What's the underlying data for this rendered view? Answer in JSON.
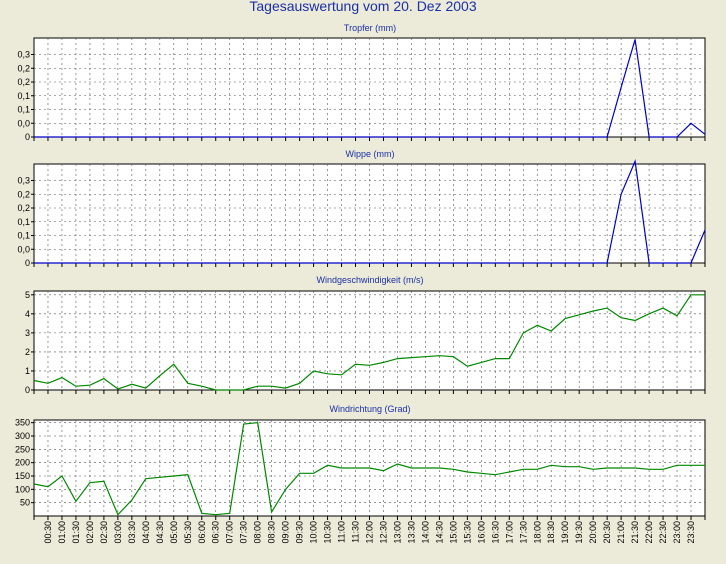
{
  "title": "Tagesauswertung vom 20. Dez 2003",
  "time_labels": [
    "00:30",
    "01:00",
    "01:30",
    "02:00",
    "02:30",
    "03:00",
    "03:30",
    "04:00",
    "04:30",
    "05:00",
    "05:30",
    "06:00",
    "06:30",
    "07:00",
    "07:30",
    "08:00",
    "08:30",
    "09:00",
    "09:30",
    "10:00",
    "10:30",
    "11:00",
    "11:30",
    "12:00",
    "12:30",
    "13:00",
    "13:30",
    "14:00",
    "14:30",
    "15:00",
    "15:30",
    "16:00",
    "16:30",
    "17:00",
    "17:30",
    "18:00",
    "18:30",
    "19:00",
    "19:30",
    "20:00",
    "20:30",
    "21:00",
    "21:30",
    "22:00",
    "22:30",
    "23:00",
    "23:30"
  ],
  "chart_data": [
    {
      "type": "line",
      "title": "Tropfer (mm)",
      "color": "#0000cc",
      "ylim": [
        0,
        0.36
      ],
      "yticks": [
        0,
        0.05,
        0.1,
        0.15,
        0.2,
        0.25,
        0.3
      ],
      "yticklabels": [
        "0",
        "0,0",
        "0,1",
        "0,1",
        "0,2",
        "0,2",
        "0,3"
      ],
      "x": [
        "00:00",
        "00:30",
        "01:00",
        "01:30",
        "02:00",
        "02:30",
        "03:00",
        "03:30",
        "04:00",
        "04:30",
        "05:00",
        "05:30",
        "06:00",
        "06:30",
        "07:00",
        "07:30",
        "08:00",
        "08:30",
        "09:00",
        "09:30",
        "10:00",
        "10:30",
        "11:00",
        "11:30",
        "12:00",
        "12:30",
        "13:00",
        "13:30",
        "14:00",
        "14:30",
        "15:00",
        "15:30",
        "16:00",
        "16:30",
        "17:00",
        "17:30",
        "18:00",
        "18:30",
        "19:00",
        "19:30",
        "20:00",
        "20:30",
        "21:00",
        "21:30",
        "22:00",
        "22:30",
        "23:00",
        "23:30",
        "24:00"
      ],
      "values": [
        0,
        0,
        0,
        0,
        0,
        0,
        0,
        0,
        0,
        0,
        0,
        0,
        0,
        0,
        0,
        0,
        0,
        0,
        0,
        0,
        0,
        0,
        0,
        0,
        0,
        0,
        0,
        0,
        0,
        0,
        0,
        0,
        0,
        0,
        0,
        0,
        0,
        0,
        0,
        0,
        0,
        0,
        0.18,
        0.355,
        0,
        0,
        0,
        0.05,
        0.01
      ]
    },
    {
      "type": "line",
      "title": "Wippe (mm)",
      "color": "#0000cc",
      "ylim": [
        0,
        0.36
      ],
      "yticks": [
        0,
        0.05,
        0.1,
        0.15,
        0.2,
        0.25,
        0.3
      ],
      "yticklabels": [
        "0",
        "0,0",
        "0,1",
        "0,1",
        "0,2",
        "0,2",
        "0,3"
      ],
      "x": [
        "00:00",
        "00:30",
        "01:00",
        "01:30",
        "02:00",
        "02:30",
        "03:00",
        "03:30",
        "04:00",
        "04:30",
        "05:00",
        "05:30",
        "06:00",
        "06:30",
        "07:00",
        "07:30",
        "08:00",
        "08:30",
        "09:00",
        "09:30",
        "10:00",
        "10:30",
        "11:00",
        "11:30",
        "12:00",
        "12:30",
        "13:00",
        "13:30",
        "14:00",
        "14:30",
        "15:00",
        "15:30",
        "16:00",
        "16:30",
        "17:00",
        "17:30",
        "18:00",
        "18:30",
        "19:00",
        "19:30",
        "20:00",
        "20:30",
        "21:00",
        "21:30",
        "22:00",
        "22:30",
        "23:00",
        "23:30",
        "24:00"
      ],
      "values": [
        0,
        0,
        0,
        0,
        0,
        0,
        0,
        0,
        0,
        0,
        0,
        0,
        0,
        0,
        0,
        0,
        0,
        0,
        0,
        0,
        0,
        0,
        0,
        0,
        0,
        0,
        0,
        0,
        0,
        0,
        0,
        0,
        0,
        0,
        0,
        0,
        0,
        0,
        0,
        0,
        0,
        0,
        0.25,
        0.37,
        0,
        0,
        0,
        0,
        0.12
      ]
    },
    {
      "type": "line",
      "title": "Windgeschwindigkeit (m/s)",
      "color": "#008800",
      "ylim": [
        0,
        5.2
      ],
      "yticks": [
        0,
        1,
        2,
        3,
        4,
        5
      ],
      "yticklabels": [
        "0",
        "1",
        "2",
        "3",
        "4",
        "5"
      ],
      "x": [
        "00:00",
        "00:30",
        "01:00",
        "01:30",
        "02:00",
        "02:30",
        "03:00",
        "03:30",
        "04:00",
        "04:30",
        "05:00",
        "05:30",
        "06:00",
        "06:30",
        "07:00",
        "07:30",
        "08:00",
        "08:30",
        "09:00",
        "09:30",
        "10:00",
        "10:30",
        "11:00",
        "11:30",
        "12:00",
        "12:30",
        "13:00",
        "13:30",
        "14:00",
        "14:30",
        "15:00",
        "15:30",
        "16:00",
        "16:30",
        "17:00",
        "17:30",
        "18:00",
        "18:30",
        "19:00",
        "19:30",
        "20:00",
        "20:30",
        "21:00",
        "21:30",
        "22:00",
        "22:30",
        "23:00",
        "23:30",
        "24:00"
      ],
      "values": [
        0.5,
        0.35,
        0.65,
        0.2,
        0.25,
        0.6,
        0.05,
        0.3,
        0.1,
        0.75,
        1.35,
        0.35,
        0.2,
        0,
        0,
        0,
        0.2,
        0.2,
        0.1,
        0.35,
        1.0,
        0.85,
        0.8,
        1.35,
        1.3,
        1.45,
        1.65,
        1.7,
        1.75,
        1.8,
        1.75,
        1.25,
        1.45,
        1.65,
        1.65,
        3.0,
        3.4,
        3.1,
        3.75,
        3.95,
        4.15,
        4.3,
        3.8,
        3.65,
        4.0,
        4.3,
        3.9,
        5.0,
        5.0
      ]
    },
    {
      "type": "line",
      "title": "Windrichtung (Grad)",
      "color": "#008800",
      "ylim": [
        0,
        360
      ],
      "yticks": [
        50,
        100,
        150,
        200,
        250,
        300,
        350
      ],
      "yticklabels": [
        "50",
        "100",
        "150",
        "200",
        "250",
        "300",
        "350"
      ],
      "x": [
        "00:00",
        "00:30",
        "01:00",
        "01:30",
        "02:00",
        "02:30",
        "03:00",
        "03:30",
        "04:00",
        "04:30",
        "05:00",
        "05:30",
        "06:00",
        "06:30",
        "07:00",
        "07:30",
        "08:00",
        "08:30",
        "09:00",
        "09:30",
        "10:00",
        "10:30",
        "11:00",
        "11:30",
        "12:00",
        "12:30",
        "13:00",
        "13:30",
        "14:00",
        "14:30",
        "15:00",
        "15:30",
        "16:00",
        "16:30",
        "17:00",
        "17:30",
        "18:00",
        "18:30",
        "19:00",
        "19:30",
        "20:00",
        "20:30",
        "21:00",
        "21:30",
        "22:00",
        "22:30",
        "23:00",
        "23:30",
        "24:00"
      ],
      "values": [
        120,
        110,
        150,
        55,
        125,
        130,
        5,
        60,
        140,
        145,
        150,
        155,
        10,
        5,
        10,
        345,
        350,
        15,
        100,
        160,
        160,
        190,
        180,
        180,
        180,
        170,
        195,
        180,
        180,
        180,
        175,
        165,
        160,
        155,
        165,
        175,
        175,
        190,
        185,
        185,
        175,
        180,
        180,
        180,
        175,
        175,
        190,
        190,
        190
      ]
    }
  ]
}
